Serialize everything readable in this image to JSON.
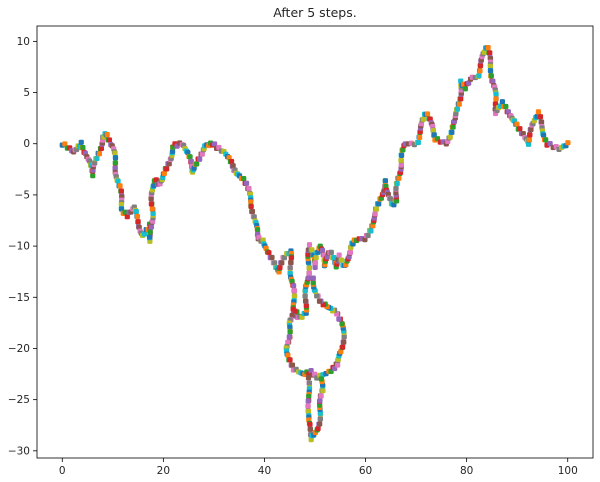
{
  "chart_data": {
    "type": "line",
    "title": "After 5 steps.",
    "xlabel": "",
    "ylabel": "",
    "xlim": [
      -5,
      105
    ],
    "ylim": [
      -30.7,
      11.5
    ],
    "xticks": [
      0,
      20,
      40,
      60,
      80,
      100
    ],
    "yticks": [
      10,
      5,
      0,
      -5,
      -10,
      -15,
      -20,
      -25,
      -30
    ],
    "grid": false,
    "legend": "none",
    "colors": [
      "#1f77b4",
      "#ff7f0e",
      "#2ca02c",
      "#d62728",
      "#9467bd",
      "#8c564b",
      "#e377c2",
      "#7f7f7f",
      "#bcbd22",
      "#17becf"
    ],
    "x": [
      0,
      2,
      4,
      6,
      8,
      9,
      10,
      11,
      12,
      13,
      14,
      15,
      16,
      17,
      17.5,
      18,
      19,
      20,
      22,
      24,
      26,
      28,
      30,
      32,
      34,
      36,
      37,
      38,
      38.5,
      39,
      40,
      41,
      42,
      43,
      44,
      45,
      46,
      47,
      48,
      49,
      50,
      51,
      52,
      53,
      54,
      55,
      56,
      57,
      58,
      59,
      60,
      62,
      64,
      65,
      66,
      67,
      68,
      70,
      72,
      74,
      76,
      77,
      78,
      79,
      80,
      81,
      82,
      83,
      84,
      85,
      86,
      87,
      88,
      90,
      92,
      94,
      96,
      98,
      100
    ],
    "y": [
      0,
      -0.8,
      0,
      -3,
      0.6,
      1,
      -0.5,
      -3.5,
      -6.5,
      -7,
      -6.2,
      -7.5,
      -9,
      -8,
      -9.5,
      -3.5,
      -4,
      -3.5,
      -0.2,
      0,
      -2.8,
      -0.2,
      0,
      -0.8,
      -2.5,
      -3.5,
      -5,
      -7,
      -9,
      -9.3,
      -9.5,
      -11,
      -12,
      -12.5,
      -11,
      -10.5,
      -16.5,
      -17,
      -16.5,
      -10,
      -12,
      -10,
      -12,
      -10.5,
      -12,
      -11,
      -12,
      -10,
      -9.5,
      -9.3,
      -9.3,
      -7,
      -3.5,
      -6,
      -5.5,
      -1.5,
      0,
      0,
      3,
      0.5,
      0,
      1.5,
      2.5,
      6,
      5.5,
      6.5,
      6.5,
      8,
      9.5,
      7,
      3,
      4,
      3,
      2,
      0,
      3,
      0,
      -0.5,
      0
    ],
    "loop_points": [
      {
        "x": 46.5,
        "y": -16.3
      },
      {
        "x": 45,
        "y": -17.5
      },
      {
        "x": 44.5,
        "y": -20
      },
      {
        "x": 45.5,
        "y": -22
      },
      {
        "x": 47.5,
        "y": -22.5
      },
      {
        "x": 49.5,
        "y": -22.3
      },
      {
        "x": 50.5,
        "y": -22.8
      },
      {
        "x": 52.5,
        "y": -22.3
      },
      {
        "x": 54.5,
        "y": -21.5
      },
      {
        "x": 55.5,
        "y": -20
      },
      {
        "x": 55.5,
        "y": -17.5
      },
      {
        "x": 54.5,
        "y": -16.5
      },
      {
        "x": 52.5,
        "y": -16
      },
      {
        "x": 51,
        "y": -15.5
      },
      {
        "x": 50,
        "y": -14
      },
      {
        "x": 49.5,
        "y": -13
      }
    ],
    "tail_points": [
      {
        "x": 48.5,
        "y": -23
      },
      {
        "x": 49,
        "y": -25
      },
      {
        "x": 48.5,
        "y": -27
      },
      {
        "x": 49.5,
        "y": -28.8
      },
      {
        "x": 50.5,
        "y": -28
      },
      {
        "x": 51,
        "y": -26
      },
      {
        "x": 51.5,
        "y": -24
      },
      {
        "x": 51,
        "y": -23
      }
    ]
  }
}
